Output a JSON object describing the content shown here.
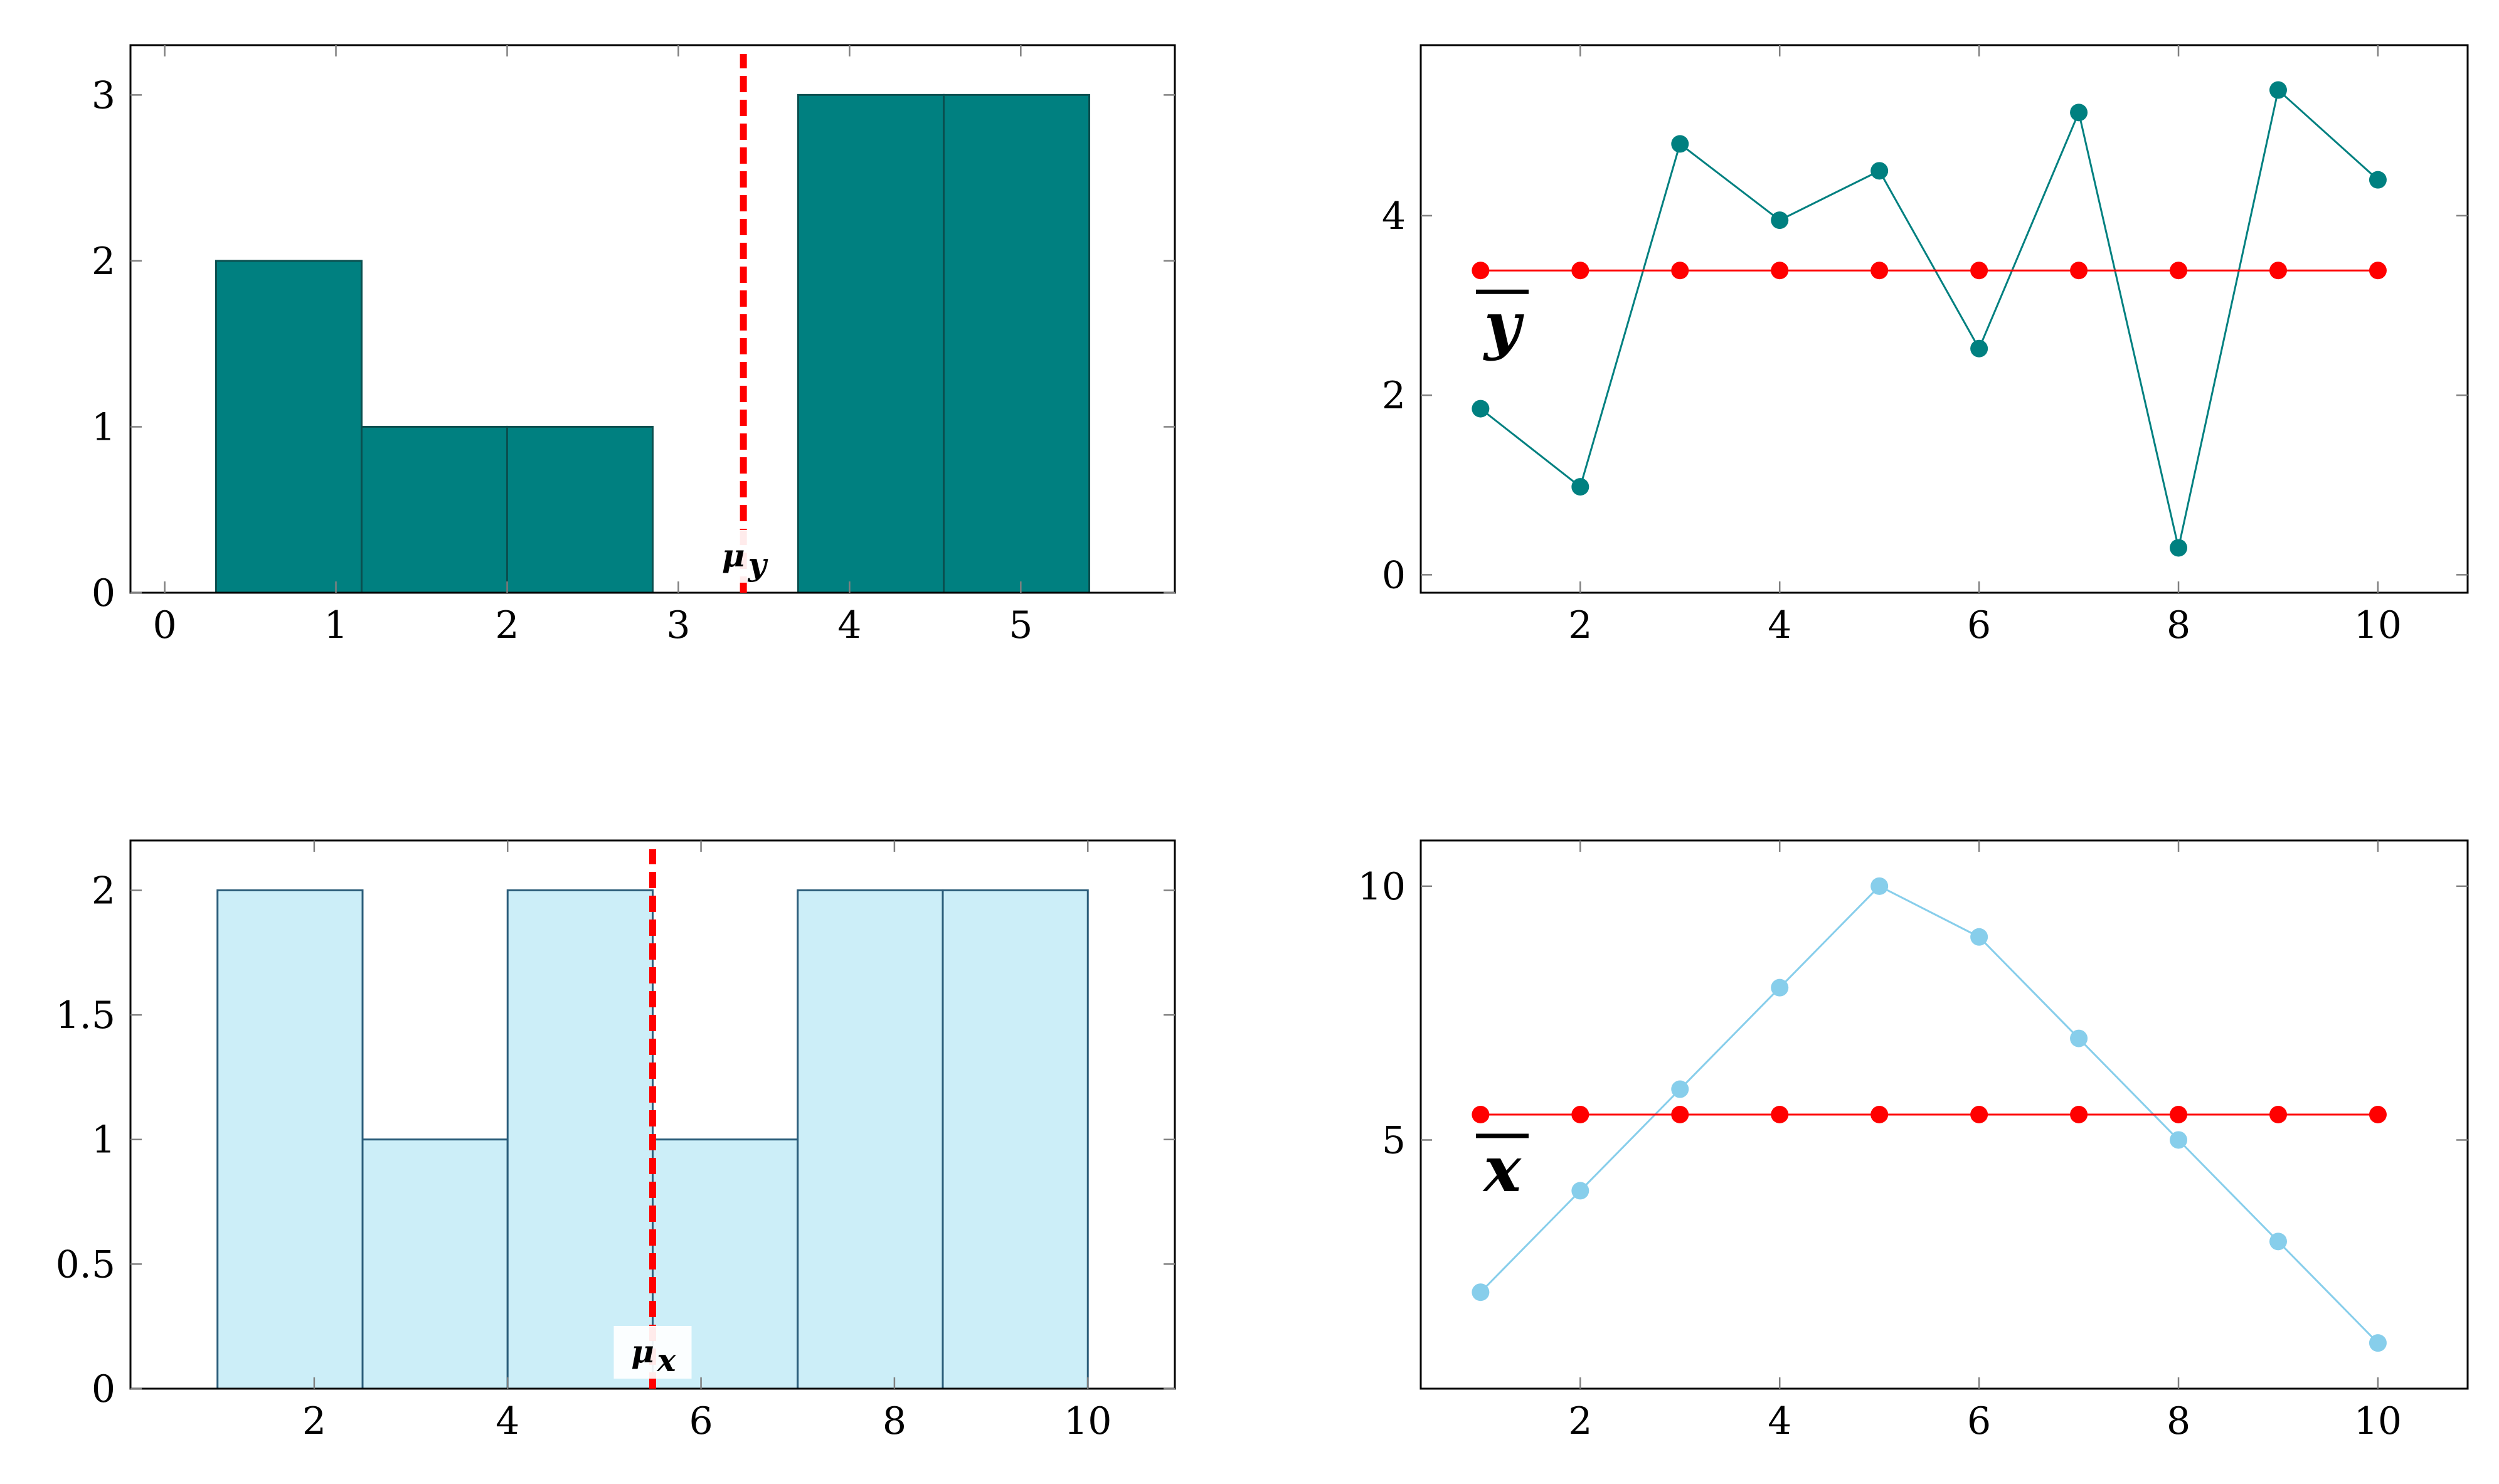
{
  "colors": {
    "teal": "#008080",
    "teal_stroke": "#0a4f4f",
    "light_blue_fill": "#cceef8",
    "light_blue_stroke": "#2b5d7a",
    "sky_blue": "#87ceeb",
    "mean_red": "#ff0000",
    "axis": "#000000",
    "tick": "#808080"
  },
  "chart_data": [
    {
      "id": "hist-y",
      "type": "bar",
      "bins": [
        {
          "from": 0.3,
          "to": 1.15,
          "count": 2
        },
        {
          "from": 1.15,
          "to": 2.0,
          "count": 1
        },
        {
          "from": 2.0,
          "to": 2.85,
          "count": 1
        },
        {
          "from": 2.85,
          "to": 3.7,
          "count": 0
        },
        {
          "from": 3.7,
          "to": 4.55,
          "count": 3
        },
        {
          "from": 4.55,
          "to": 5.4,
          "count": 3
        }
      ],
      "xlim": [
        -0.2,
        5.9
      ],
      "ylim": [
        0,
        3.3
      ],
      "xticks": [
        0,
        1,
        2,
        3,
        4,
        5
      ],
      "xtick_labels": [
        "0",
        "1",
        "2",
        "3",
        "4",
        "5"
      ],
      "yticks": [
        0,
        1,
        2,
        3
      ],
      "ytick_labels": [
        "0",
        "1",
        "2",
        "3"
      ],
      "mean": {
        "value": 3.38,
        "label": "μ",
        "subscript": "y"
      },
      "fill": "teal",
      "stroke": "teal_stroke",
      "grid": false
    },
    {
      "id": "line-y",
      "type": "line",
      "x": [
        1,
        2,
        3,
        4,
        5,
        6,
        7,
        8,
        9,
        10
      ],
      "series": [
        {
          "values": [
            1.85,
            0.98,
            4.8,
            3.95,
            4.5,
            2.52,
            5.15,
            0.3,
            5.4,
            4.4
          ],
          "color": "teal"
        },
        {
          "values": [
            3.39,
            3.39,
            3.39,
            3.39,
            3.39,
            3.39,
            3.39,
            3.39,
            3.39,
            3.39
          ],
          "color": "mean_red"
        }
      ],
      "xlim": [
        0.4,
        10.9
      ],
      "ylim": [
        -0.2,
        5.9
      ],
      "xticks": [
        2,
        4,
        6,
        8,
        10
      ],
      "xtick_labels": [
        "2",
        "4",
        "6",
        "8",
        "10"
      ],
      "yticks": [
        0,
        2,
        4
      ],
      "ytick_labels": [
        "0",
        "2",
        "4"
      ],
      "mean_label": "y",
      "grid": false
    },
    {
      "id": "hist-x",
      "type": "bar",
      "bins": [
        {
          "from": 1.0,
          "to": 2.5,
          "count": 2
        },
        {
          "from": 2.5,
          "to": 4.0,
          "count": 1
        },
        {
          "from": 4.0,
          "to": 5.5,
          "count": 2
        },
        {
          "from": 5.5,
          "to": 7.0,
          "count": 1
        },
        {
          "from": 7.0,
          "to": 8.5,
          "count": 2
        },
        {
          "from": 8.5,
          "to": 10.0,
          "count": 2
        }
      ],
      "xlim": [
        0.1,
        10.9
      ],
      "ylim": [
        0,
        2.2
      ],
      "xticks": [
        2,
        4,
        6,
        8,
        10
      ],
      "xtick_labels": [
        "2",
        "4",
        "6",
        "8",
        "10"
      ],
      "yticks": [
        0,
        0.5,
        1,
        1.5,
        2
      ],
      "ytick_labels": [
        "0",
        "0.5",
        "1",
        "1.5",
        "2"
      ],
      "mean": {
        "value": 5.5,
        "label": "μ",
        "subscript": "x"
      },
      "fill": "light_blue_fill",
      "stroke": "light_blue_stroke",
      "grid": false
    },
    {
      "id": "line-x",
      "type": "line",
      "x": [
        1,
        2,
        3,
        4,
        5,
        6,
        7,
        8,
        9,
        10
      ],
      "series": [
        {
          "values": [
            2,
            4,
            6,
            8,
            10,
            9,
            7,
            5,
            3,
            1
          ],
          "color": "sky_blue"
        },
        {
          "values": [
            5.5,
            5.5,
            5.5,
            5.5,
            5.5,
            5.5,
            5.5,
            5.5,
            5.5,
            5.5
          ],
          "color": "mean_red"
        }
      ],
      "xlim": [
        0.4,
        10.9
      ],
      "ylim": [
        0.1,
        10.9
      ],
      "xticks": [
        2,
        4,
        6,
        8,
        10
      ],
      "xtick_labels": [
        "2",
        "4",
        "6",
        "8",
        "10"
      ],
      "yticks": [
        5,
        10
      ],
      "ytick_labels": [
        "5",
        "10"
      ],
      "mean_label": "x",
      "grid": false
    }
  ]
}
